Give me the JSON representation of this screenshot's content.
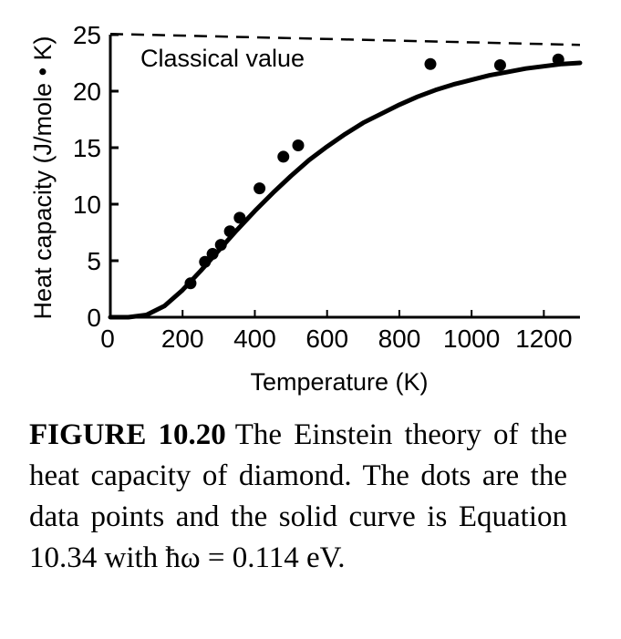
{
  "chart_data": {
    "type": "scatter",
    "xlabel": "Temperature (K)",
    "ylabel": "Heat capacity (J/mole • K)",
    "xlim": [
      0,
      1300
    ],
    "ylim": [
      0,
      25
    ],
    "x_ticks": [
      "0",
      "200",
      "400",
      "600",
      "800",
      "1000",
      "1200"
    ],
    "y_ticks": [
      "0",
      "5",
      "10",
      "15",
      "20",
      "25"
    ],
    "reference_line": {
      "label": "Classical value",
      "value": 24.9,
      "style": "dashed"
    },
    "series": [
      {
        "kind": "points",
        "x": [
          222,
          262,
          283,
          306,
          331,
          358,
          413,
          479,
          520,
          886,
          1079,
          1240
        ],
        "y": [
          3.0,
          4.9,
          5.6,
          6.4,
          7.6,
          8.8,
          11.4,
          14.2,
          15.2,
          22.4,
          22.3,
          22.8
        ]
      },
      {
        "kind": "curve",
        "x": [
          0,
          50,
          100,
          150,
          200,
          250,
          300,
          350,
          400,
          450,
          500,
          550,
          600,
          650,
          700,
          750,
          800,
          850,
          900,
          950,
          1000,
          1050,
          1100,
          1150,
          1200,
          1250,
          1300
        ],
        "y": [
          0,
          0.0,
          0.2,
          1.0,
          2.4,
          4.1,
          5.9,
          7.7,
          9.4,
          11.0,
          12.5,
          13.9,
          15.1,
          16.2,
          17.2,
          18.0,
          18.8,
          19.5,
          20.1,
          20.6,
          21.0,
          21.4,
          21.7,
          22.0,
          22.2,
          22.4,
          22.5
        ]
      }
    ]
  },
  "caption": {
    "label": "FIGURE 10.20",
    "text": "The Einstein theory of the heat capacity of diamond. The dots are the data points and the solid curve is Equation 10.34 with ħω = 0.114 eV."
  }
}
